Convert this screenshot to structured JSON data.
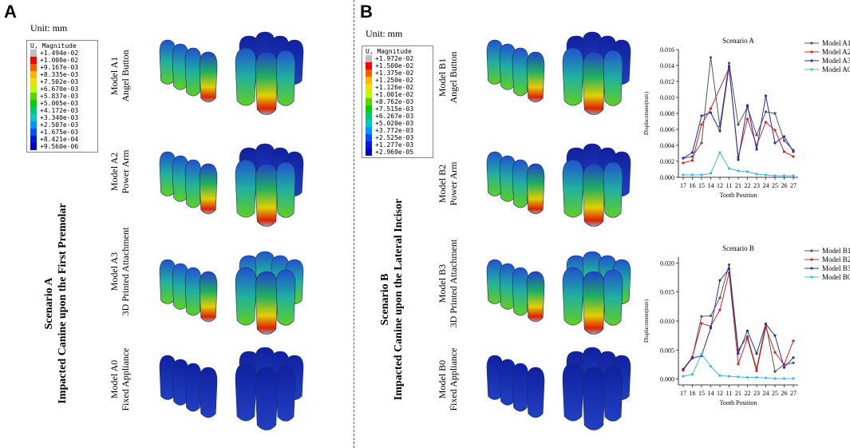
{
  "panel_a": {
    "letter": "A",
    "unit": "Unit: mm",
    "legend_title": "U, Magnitude",
    "legend_values": [
      "+1.494e-02",
      "+1.000e-02",
      "+9.167e-03",
      "+8.335e-03",
      "+7.502e-03",
      "+6.670e-03",
      "+5.837e-03",
      "+5.005e-03",
      "+4.172e-03",
      "+3.340e-03",
      "+2.507e-03",
      "+1.675e-03",
      "+8.421e-04",
      "+9.560e-06"
    ],
    "scenario_title": "Scenario A",
    "scenario_subtitle": "Impacted Canine upon the First Premolar",
    "models": [
      {
        "name": "Model A1",
        "desc": "Angel Button"
      },
      {
        "name": "Model A2",
        "desc": "Power Arm"
      },
      {
        "name": "Model A3",
        "desc": "3D Printed Attachment"
      },
      {
        "name": "Model A0",
        "desc": "Fixed Appliance"
      }
    ]
  },
  "panel_b": {
    "letter": "B",
    "unit": "Unit: mm",
    "legend_title": "U, Magnitude",
    "legend_values": [
      "+1.972e-02",
      "+1.500e-02",
      "+1.375e-02",
      "+1.250e-02",
      "+1.126e-02",
      "+1.001e-02",
      "+8.762e-03",
      "+7.515e-03",
      "+6.267e-03",
      "+5.020e-03",
      "+3.772e-03",
      "+2.525e-03",
      "+1.277e-03",
      "+2.969e-05"
    ],
    "scenario_title": "Scenario B",
    "scenario_subtitle": "Impacted Canine upon the Lateral Incisor",
    "models": [
      {
        "name": "Model B1",
        "desc": "Angel Button"
      },
      {
        "name": "Model B2",
        "desc": "Power Arm"
      },
      {
        "name": "Model B3",
        "desc": "3D Printed Attachment"
      },
      {
        "name": "Model B0",
        "desc": "Fixed Appliance"
      }
    ]
  },
  "legend_colors": [
    "#c0c0c0",
    "#ff0000",
    "#ff5a00",
    "#ffb400",
    "#f0e000",
    "#b4ff00",
    "#5cd400",
    "#00d000",
    "#00c878",
    "#00c8c8",
    "#0096ff",
    "#0050ff",
    "#0018e0",
    "#0000c0"
  ],
  "chart_data": [
    {
      "type": "line",
      "title": "Scenario A",
      "xlabel": "Tooth Position",
      "ylabel": "Displacement(mm)",
      "categories": [
        "17",
        "16",
        "15",
        "14",
        "12",
        "11",
        "21",
        "22",
        "23",
        "24",
        "25",
        "26",
        "27"
      ],
      "ylim": [
        0,
        0.016
      ],
      "yticks": [
        "0.000",
        "0.002",
        "0.004",
        "0.006",
        "0.008",
        "0.010",
        "0.012",
        "0.014",
        "0.016"
      ],
      "legend_position": "top-right",
      "series": [
        {
          "name": "Model A1",
          "color": "#555555",
          "values": [
            0.0024,
            0.0026,
            0.0043,
            0.015,
            0.0064,
            0.0143,
            0.0066,
            0.0088,
            0.0053,
            0.0082,
            0.008,
            0.0046,
            0.0034
          ]
        },
        {
          "name": "Model A2",
          "color": "#e02020",
          "values": [
            0.0018,
            0.0021,
            0.0066,
            0.0086,
            null,
            0.0137,
            0.0025,
            0.0073,
            0.004,
            0.0069,
            0.0059,
            0.0032,
            0.0026
          ]
        },
        {
          "name": "Model A3",
          "color": "#2030b0",
          "values": [
            0.0024,
            0.0031,
            0.0077,
            0.0081,
            0.0058,
            0.0139,
            0.0022,
            0.009,
            0.0035,
            0.0102,
            0.0043,
            0.0051,
            0.0032
          ]
        },
        {
          "name": "Model A0",
          "color": "#40b8e8",
          "values": [
            0.0003,
            0.0003,
            0.0003,
            0.0005,
            0.0031,
            0.0011,
            0.0008,
            0.0007,
            0.0004,
            0.0003,
            0.0002,
            0.0002,
            0.0002
          ]
        }
      ]
    },
    {
      "type": "line",
      "title": "Scenario B",
      "xlabel": "Tooth Position",
      "ylabel": "Displacement(mm)",
      "categories": [
        "17",
        "16",
        "15",
        "14",
        "12",
        "11",
        "21",
        "22",
        "23",
        "24",
        "25",
        "26",
        "27"
      ],
      "ylim": [
        -0.001,
        0.021
      ],
      "yticks": [
        "0.000",
        "0.005",
        "0.010",
        "0.015",
        "0.020"
      ],
      "legend_position": "top-right",
      "series": [
        {
          "name": "Model B1",
          "color": "#555555",
          "values": [
            0.0017,
            0.0038,
            0.0108,
            0.0109,
            0.014,
            0.0197,
            0.005,
            0.0073,
            0.0018,
            0.0095,
            0.0013,
            0.0025,
            0.0028
          ]
        },
        {
          "name": "Model B2",
          "color": "#e02020",
          "values": [
            0.0015,
            0.0038,
            0.0096,
            0.0091,
            0.0119,
            0.0183,
            0.0026,
            0.007,
            0.0014,
            0.0089,
            0.0046,
            0.0025,
            0.0066
          ]
        },
        {
          "name": "Model B3",
          "color": "#2030b0",
          "values": [
            0.0017,
            0.0036,
            0.004,
            0.0088,
            0.017,
            0.019,
            0.0044,
            0.0083,
            0.0044,
            0.0095,
            0.0075,
            0.002,
            0.0037
          ]
        },
        {
          "name": "Model B0",
          "color": "#40b8e8",
          "values": [
            0.0005,
            0.0008,
            0.0043,
            0.0022,
            0.0006,
            0.0005,
            0.0004,
            0.0003,
            0.0003,
            0.0002,
            0.0001,
            0.0001,
            0.0001
          ]
        }
      ]
    }
  ]
}
